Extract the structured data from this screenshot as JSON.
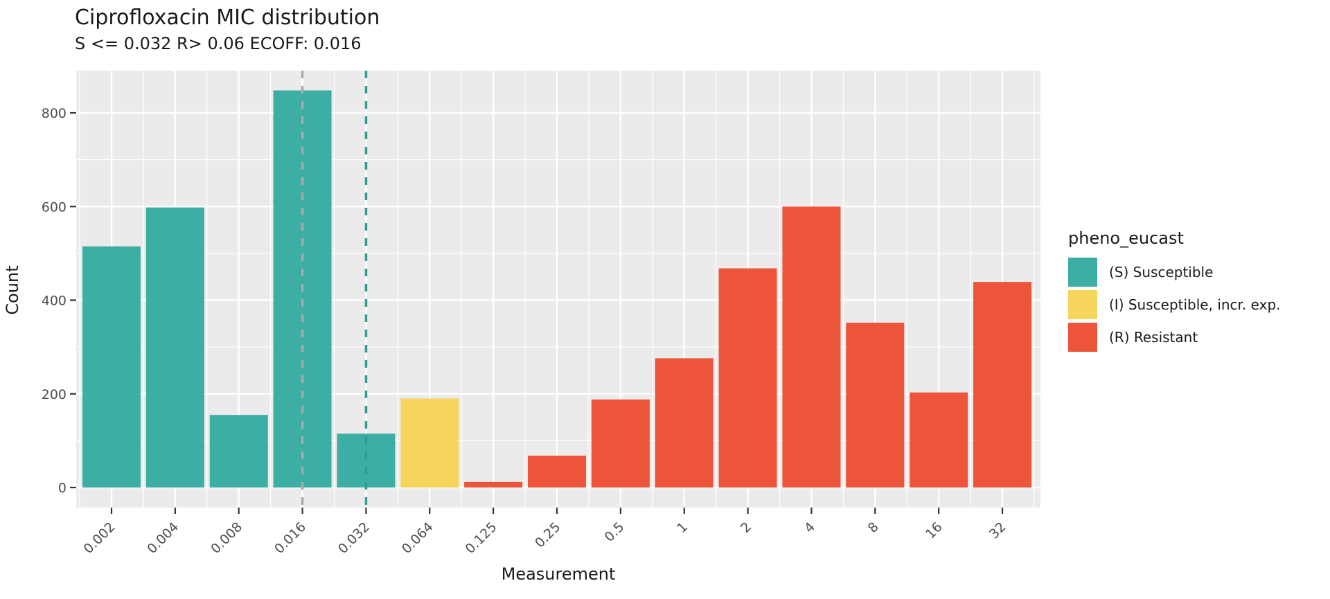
{
  "header": {
    "title": "Ciprofloxacin MIC distribution",
    "subtitle": "S <= 0.032 R> 0.06 ECOFF: 0.016"
  },
  "chart_data": {
    "type": "bar",
    "title": "Ciprofloxacin MIC distribution",
    "subtitle": "S <= 0.032 R> 0.06 ECOFF: 0.016",
    "xlabel": "Measurement",
    "ylabel": "Count",
    "categories": [
      "0.002",
      "0.004",
      "0.008",
      "0.016",
      "0.032",
      "0.064",
      "0.125",
      "0.25",
      "0.5",
      "1",
      "2",
      "4",
      "8",
      "16",
      "32"
    ],
    "values": [
      515,
      598,
      155,
      848,
      115,
      190,
      12,
      68,
      188,
      276,
      468,
      600,
      352,
      203,
      439
    ],
    "groups": [
      "S",
      "S",
      "S",
      "S",
      "S",
      "I",
      "R",
      "R",
      "R",
      "R",
      "R",
      "R",
      "R",
      "R",
      "R"
    ],
    "group_colors": {
      "S": "#3CAEA3",
      "I": "#F6D55C",
      "R": "#ED553B"
    },
    "yticks": [
      0,
      200,
      400,
      600,
      800
    ],
    "ylim": [
      0,
      890
    ],
    "grid": true,
    "legend_position": "right",
    "vlines": [
      {
        "x": "0.016",
        "color": "#A9A9A9",
        "style": "dashed"
      },
      {
        "x": "0.032",
        "color": "#2E9C94",
        "style": "dashed"
      }
    ],
    "panel_background": "#EBEBEB",
    "gridline_color": "#FFFFFF",
    "axis_text_color": "#4D4D4D",
    "tick_mark_color": "#333333"
  },
  "legend": {
    "title": "pheno_eucast",
    "items": [
      {
        "key": "S",
        "label": "(S) Susceptible",
        "color": "#3CAEA3"
      },
      {
        "key": "I",
        "label": "(I) Susceptible, incr. exp.",
        "color": "#F6D55C"
      },
      {
        "key": "R",
        "label": "(R) Resistant",
        "color": "#ED553B"
      }
    ]
  }
}
